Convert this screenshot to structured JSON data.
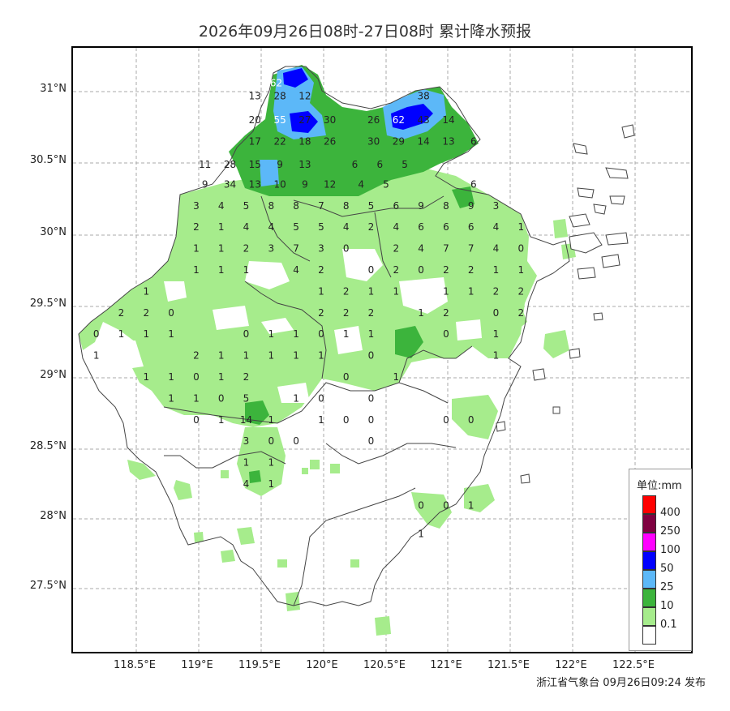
{
  "title": "2026年09月26日08时-27日08时 累计降水预报",
  "footer": "浙江省气象台 09月26日09:24 发布",
  "latitude_labels": [
    "31°N",
    "30.5°N",
    "30°N",
    "29.5°N",
    "29°N",
    "28.5°N",
    "28°N",
    "27.5°N"
  ],
  "longitude_labels": [
    "118.5°E",
    "119°E",
    "119.5°E",
    "120°E",
    "120.5°E",
    "121°E",
    "121.5°E",
    "122°E",
    "122.5°E"
  ],
  "legend": {
    "title": "单位:mm",
    "items": [
      {
        "label": "400",
        "color": "#ff0000"
      },
      {
        "label": "250",
        "color": "#7f0040"
      },
      {
        "label": "100",
        "color": "#ff00ff"
      },
      {
        "label": "50",
        "color": "#0000ff"
      },
      {
        "label": "25",
        "color": "#5cb8f8"
      },
      {
        "label": "10",
        "color": "#3cb43c"
      },
      {
        "label": "0.1",
        "color": "#a6ec8c"
      },
      {
        "label": "",
        "color": "#ffffff"
      }
    ]
  },
  "colors": {
    "light_green": "#a6ec8c",
    "green": "#3cb43c",
    "light_blue": "#5cb8f8",
    "blue": "#0000ff",
    "grid": "#aaaaaa",
    "boundary": "#444444"
  },
  "station_values": [
    {
      "lon": 119.62,
      "lat": 31.06,
      "v": "62",
      "w": true
    },
    {
      "lon": 119.45,
      "lat": 30.97,
      "v": "13"
    },
    {
      "lon": 119.65,
      "lat": 30.97,
      "v": "28"
    },
    {
      "lon": 119.85,
      "lat": 30.97,
      "v": "12"
    },
    {
      "lon": 120.8,
      "lat": 30.97,
      "v": "38"
    },
    {
      "lon": 119.45,
      "lat": 30.8,
      "v": "20"
    },
    {
      "lon": 119.65,
      "lat": 30.8,
      "v": "55",
      "w": true
    },
    {
      "lon": 119.85,
      "lat": 30.8,
      "v": "27"
    },
    {
      "lon": 120.05,
      "lat": 30.8,
      "v": "30"
    },
    {
      "lon": 120.4,
      "lat": 30.8,
      "v": "26"
    },
    {
      "lon": 120.6,
      "lat": 30.8,
      "v": "62",
      "w": true
    },
    {
      "lon": 120.8,
      "lat": 30.8,
      "v": "43"
    },
    {
      "lon": 121.0,
      "lat": 30.8,
      "v": "14"
    },
    {
      "lon": 119.45,
      "lat": 30.65,
      "v": "17"
    },
    {
      "lon": 119.65,
      "lat": 30.65,
      "v": "22"
    },
    {
      "lon": 119.85,
      "lat": 30.65,
      "v": "18"
    },
    {
      "lon": 120.05,
      "lat": 30.65,
      "v": "26"
    },
    {
      "lon": 120.4,
      "lat": 30.65,
      "v": "30"
    },
    {
      "lon": 120.6,
      "lat": 30.65,
      "v": "29"
    },
    {
      "lon": 120.8,
      "lat": 30.65,
      "v": "14"
    },
    {
      "lon": 121.0,
      "lat": 30.65,
      "v": "13"
    },
    {
      "lon": 121.2,
      "lat": 30.65,
      "v": "6"
    },
    {
      "lon": 119.05,
      "lat": 30.49,
      "v": "11"
    },
    {
      "lon": 119.25,
      "lat": 30.49,
      "v": "28"
    },
    {
      "lon": 119.45,
      "lat": 30.49,
      "v": "15"
    },
    {
      "lon": 119.65,
      "lat": 30.49,
      "v": "9"
    },
    {
      "lon": 119.85,
      "lat": 30.49,
      "v": "13"
    },
    {
      "lon": 120.25,
      "lat": 30.49,
      "v": "6"
    },
    {
      "lon": 120.45,
      "lat": 30.49,
      "v": "6"
    },
    {
      "lon": 120.65,
      "lat": 30.49,
      "v": "5"
    },
    {
      "lon": 119.05,
      "lat": 30.35,
      "v": "9"
    },
    {
      "lon": 119.25,
      "lat": 30.35,
      "v": "34"
    },
    {
      "lon": 119.45,
      "lat": 30.35,
      "v": "13"
    },
    {
      "lon": 119.65,
      "lat": 30.35,
      "v": "10"
    },
    {
      "lon": 119.85,
      "lat": 30.35,
      "v": "9"
    },
    {
      "lon": 120.05,
      "lat": 30.35,
      "v": "12"
    },
    {
      "lon": 120.3,
      "lat": 30.35,
      "v": "4"
    },
    {
      "lon": 120.5,
      "lat": 30.35,
      "v": "5"
    },
    {
      "lon": 121.2,
      "lat": 30.35,
      "v": "6"
    },
    {
      "lon": 118.98,
      "lat": 30.2,
      "v": "3"
    },
    {
      "lon": 119.18,
      "lat": 30.2,
      "v": "4"
    },
    {
      "lon": 119.38,
      "lat": 30.2,
      "v": "5"
    },
    {
      "lon": 119.58,
      "lat": 30.2,
      "v": "8"
    },
    {
      "lon": 119.78,
      "lat": 30.2,
      "v": "8"
    },
    {
      "lon": 119.98,
      "lat": 30.2,
      "v": "7"
    },
    {
      "lon": 120.18,
      "lat": 30.2,
      "v": "8"
    },
    {
      "lon": 120.38,
      "lat": 30.2,
      "v": "5"
    },
    {
      "lon": 120.58,
      "lat": 30.2,
      "v": "6"
    },
    {
      "lon": 120.78,
      "lat": 30.2,
      "v": "9"
    },
    {
      "lon": 120.98,
      "lat": 30.2,
      "v": "8"
    },
    {
      "lon": 121.18,
      "lat": 30.2,
      "v": "9"
    },
    {
      "lon": 121.38,
      "lat": 30.2,
      "v": "3"
    },
    {
      "lon": 118.98,
      "lat": 30.05,
      "v": "2"
    },
    {
      "lon": 119.18,
      "lat": 30.05,
      "v": "1"
    },
    {
      "lon": 119.38,
      "lat": 30.05,
      "v": "4"
    },
    {
      "lon": 119.58,
      "lat": 30.05,
      "v": "4"
    },
    {
      "lon": 119.78,
      "lat": 30.05,
      "v": "5"
    },
    {
      "lon": 119.98,
      "lat": 30.05,
      "v": "5"
    },
    {
      "lon": 120.18,
      "lat": 30.05,
      "v": "4"
    },
    {
      "lon": 120.38,
      "lat": 30.05,
      "v": "2"
    },
    {
      "lon": 120.58,
      "lat": 30.05,
      "v": "4"
    },
    {
      "lon": 120.78,
      "lat": 30.05,
      "v": "6"
    },
    {
      "lon": 120.98,
      "lat": 30.05,
      "v": "6"
    },
    {
      "lon": 121.18,
      "lat": 30.05,
      "v": "6"
    },
    {
      "lon": 121.38,
      "lat": 30.05,
      "v": "4"
    },
    {
      "lon": 121.58,
      "lat": 30.05,
      "v": "1"
    },
    {
      "lon": 118.98,
      "lat": 29.9,
      "v": "1"
    },
    {
      "lon": 119.18,
      "lat": 29.9,
      "v": "1"
    },
    {
      "lon": 119.38,
      "lat": 29.9,
      "v": "2"
    },
    {
      "lon": 119.58,
      "lat": 29.9,
      "v": "3"
    },
    {
      "lon": 119.78,
      "lat": 29.9,
      "v": "7"
    },
    {
      "lon": 119.98,
      "lat": 29.9,
      "v": "3"
    },
    {
      "lon": 120.18,
      "lat": 29.9,
      "v": "0"
    },
    {
      "lon": 120.58,
      "lat": 29.9,
      "v": "2"
    },
    {
      "lon": 120.78,
      "lat": 29.9,
      "v": "4"
    },
    {
      "lon": 120.98,
      "lat": 29.9,
      "v": "7"
    },
    {
      "lon": 121.18,
      "lat": 29.9,
      "v": "7"
    },
    {
      "lon": 121.38,
      "lat": 29.9,
      "v": "4"
    },
    {
      "lon": 121.58,
      "lat": 29.9,
      "v": "0"
    },
    {
      "lon": 118.98,
      "lat": 29.75,
      "v": "1"
    },
    {
      "lon": 119.18,
      "lat": 29.75,
      "v": "1"
    },
    {
      "lon": 119.38,
      "lat": 29.75,
      "v": "1"
    },
    {
      "lon": 119.78,
      "lat": 29.75,
      "v": "4"
    },
    {
      "lon": 119.98,
      "lat": 29.75,
      "v": "2"
    },
    {
      "lon": 120.38,
      "lat": 29.75,
      "v": "0"
    },
    {
      "lon": 120.58,
      "lat": 29.75,
      "v": "2"
    },
    {
      "lon": 120.78,
      "lat": 29.75,
      "v": "0"
    },
    {
      "lon": 120.98,
      "lat": 29.75,
      "v": "2"
    },
    {
      "lon": 121.18,
      "lat": 29.75,
      "v": "2"
    },
    {
      "lon": 121.38,
      "lat": 29.75,
      "v": "1"
    },
    {
      "lon": 121.58,
      "lat": 29.75,
      "v": "1"
    },
    {
      "lon": 118.58,
      "lat": 29.6,
      "v": "1"
    },
    {
      "lon": 119.98,
      "lat": 29.6,
      "v": "1"
    },
    {
      "lon": 120.18,
      "lat": 29.6,
      "v": "2"
    },
    {
      "lon": 120.38,
      "lat": 29.6,
      "v": "1"
    },
    {
      "lon": 120.58,
      "lat": 29.6,
      "v": "1"
    },
    {
      "lon": 120.98,
      "lat": 29.6,
      "v": "1"
    },
    {
      "lon": 121.18,
      "lat": 29.6,
      "v": "1"
    },
    {
      "lon": 121.38,
      "lat": 29.6,
      "v": "2"
    },
    {
      "lon": 121.58,
      "lat": 29.6,
      "v": "2"
    },
    {
      "lon": 118.38,
      "lat": 29.45,
      "v": "2"
    },
    {
      "lon": 118.58,
      "lat": 29.45,
      "v": "2"
    },
    {
      "lon": 118.78,
      "lat": 29.45,
      "v": "0"
    },
    {
      "lon": 119.98,
      "lat": 29.45,
      "v": "2"
    },
    {
      "lon": 120.18,
      "lat": 29.45,
      "v": "2"
    },
    {
      "lon": 120.38,
      "lat": 29.45,
      "v": "2"
    },
    {
      "lon": 120.78,
      "lat": 29.45,
      "v": "1"
    },
    {
      "lon": 120.98,
      "lat": 29.45,
      "v": "2"
    },
    {
      "lon": 121.38,
      "lat": 29.45,
      "v": "0"
    },
    {
      "lon": 121.58,
      "lat": 29.45,
      "v": "2"
    },
    {
      "lon": 118.18,
      "lat": 29.3,
      "v": "0"
    },
    {
      "lon": 118.38,
      "lat": 29.3,
      "v": "1"
    },
    {
      "lon": 118.58,
      "lat": 29.3,
      "v": "1"
    },
    {
      "lon": 118.78,
      "lat": 29.3,
      "v": "1"
    },
    {
      "lon": 119.38,
      "lat": 29.3,
      "v": "0"
    },
    {
      "lon": 119.58,
      "lat": 29.3,
      "v": "1"
    },
    {
      "lon": 119.78,
      "lat": 29.3,
      "v": "1"
    },
    {
      "lon": 119.98,
      "lat": 29.3,
      "v": "0"
    },
    {
      "lon": 120.18,
      "lat": 29.3,
      "v": "1"
    },
    {
      "lon": 120.38,
      "lat": 29.3,
      "v": "1"
    },
    {
      "lon": 120.98,
      "lat": 29.3,
      "v": "0"
    },
    {
      "lon": 121.38,
      "lat": 29.3,
      "v": "1"
    },
    {
      "lon": 118.18,
      "lat": 29.15,
      "v": "1"
    },
    {
      "lon": 118.98,
      "lat": 29.15,
      "v": "2"
    },
    {
      "lon": 119.18,
      "lat": 29.15,
      "v": "1"
    },
    {
      "lon": 119.38,
      "lat": 29.15,
      "v": "1"
    },
    {
      "lon": 119.58,
      "lat": 29.15,
      "v": "1"
    },
    {
      "lon": 119.78,
      "lat": 29.15,
      "v": "1"
    },
    {
      "lon": 119.98,
      "lat": 29.15,
      "v": "1"
    },
    {
      "lon": 120.38,
      "lat": 29.15,
      "v": "0"
    },
    {
      "lon": 121.38,
      "lat": 29.15,
      "v": "1"
    },
    {
      "lon": 118.58,
      "lat": 29.0,
      "v": "1"
    },
    {
      "lon": 118.78,
      "lat": 29.0,
      "v": "1"
    },
    {
      "lon": 118.98,
      "lat": 29.0,
      "v": "0"
    },
    {
      "lon": 119.18,
      "lat": 29.0,
      "v": "1"
    },
    {
      "lon": 119.38,
      "lat": 29.0,
      "v": "2"
    },
    {
      "lon": 120.18,
      "lat": 29.0,
      "v": "0"
    },
    {
      "lon": 120.58,
      "lat": 29.0,
      "v": "1"
    },
    {
      "lon": 118.78,
      "lat": 28.85,
      "v": "1"
    },
    {
      "lon": 118.98,
      "lat": 28.85,
      "v": "1"
    },
    {
      "lon": 119.18,
      "lat": 28.85,
      "v": "0"
    },
    {
      "lon": 119.38,
      "lat": 28.85,
      "v": "5"
    },
    {
      "lon": 119.78,
      "lat": 28.85,
      "v": "1"
    },
    {
      "lon": 119.98,
      "lat": 28.85,
      "v": "0"
    },
    {
      "lon": 120.38,
      "lat": 28.85,
      "v": "0"
    },
    {
      "lon": 118.98,
      "lat": 28.7,
      "v": "0"
    },
    {
      "lon": 119.18,
      "lat": 28.7,
      "v": "1"
    },
    {
      "lon": 119.38,
      "lat": 28.7,
      "v": "14"
    },
    {
      "lon": 119.58,
      "lat": 28.7,
      "v": "1"
    },
    {
      "lon": 119.98,
      "lat": 28.7,
      "v": "1"
    },
    {
      "lon": 120.18,
      "lat": 28.7,
      "v": "0"
    },
    {
      "lon": 120.38,
      "lat": 28.7,
      "v": "0"
    },
    {
      "lon": 120.98,
      "lat": 28.7,
      "v": "0"
    },
    {
      "lon": 121.18,
      "lat": 28.7,
      "v": "0"
    },
    {
      "lon": 119.38,
      "lat": 28.55,
      "v": "3"
    },
    {
      "lon": 119.58,
      "lat": 28.55,
      "v": "0"
    },
    {
      "lon": 119.78,
      "lat": 28.55,
      "v": "0"
    },
    {
      "lon": 120.38,
      "lat": 28.55,
      "v": "0"
    },
    {
      "lon": 119.38,
      "lat": 28.4,
      "v": "1"
    },
    {
      "lon": 119.58,
      "lat": 28.4,
      "v": "1"
    },
    {
      "lon": 119.38,
      "lat": 28.25,
      "v": "4"
    },
    {
      "lon": 119.58,
      "lat": 28.25,
      "v": "1"
    },
    {
      "lon": 120.78,
      "lat": 28.1,
      "v": "0"
    },
    {
      "lon": 120.98,
      "lat": 28.1,
      "v": "0"
    },
    {
      "lon": 121.18,
      "lat": 28.1,
      "v": "1"
    },
    {
      "lon": 120.78,
      "lat": 27.9,
      "v": "1"
    }
  ]
}
